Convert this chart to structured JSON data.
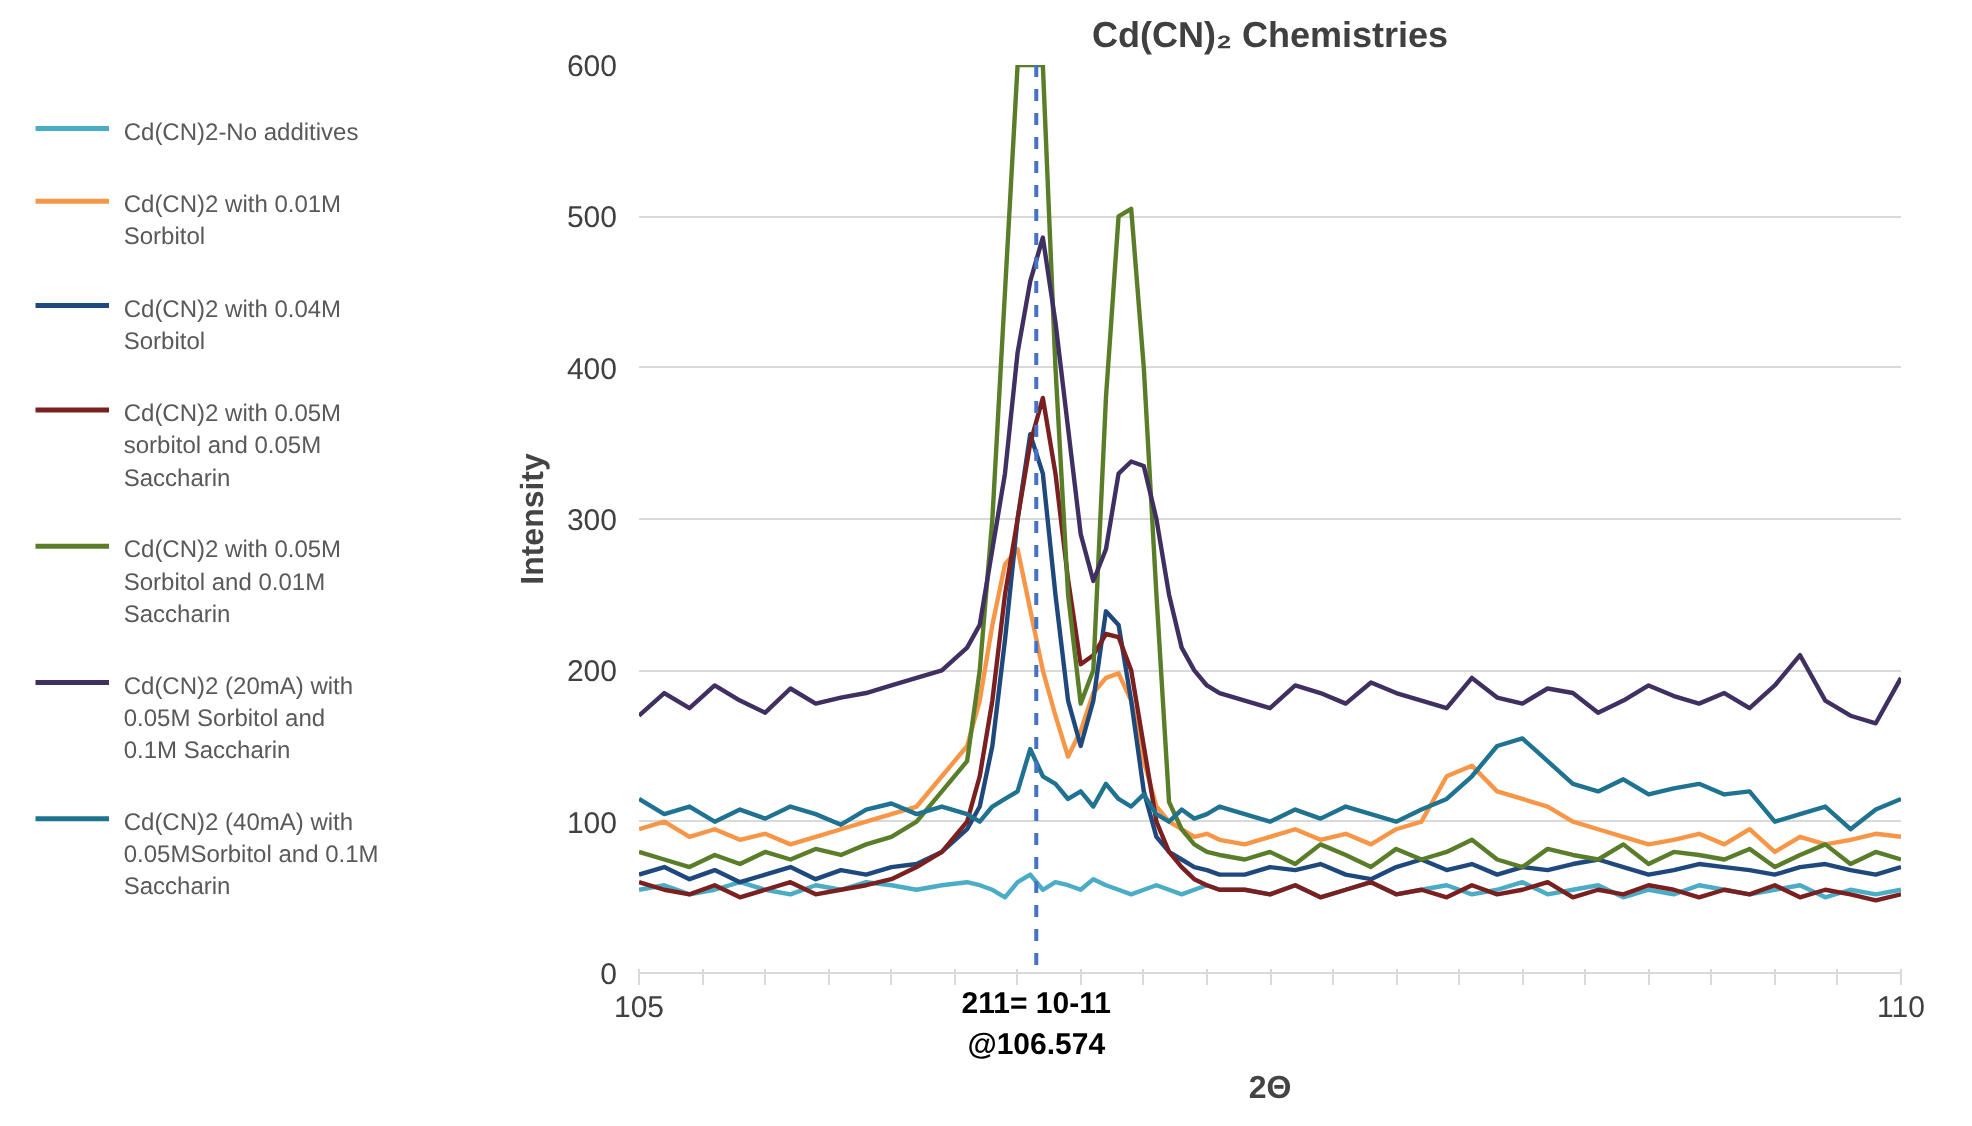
{
  "chart_data": {
    "type": "line",
    "title": "Cd(CN)₂ Chemistries",
    "xlabel": "2Θ",
    "ylabel": "Intensity",
    "x": [
      105.0,
      105.1,
      105.2,
      105.3,
      105.4,
      105.5,
      105.6,
      105.7,
      105.8,
      105.9,
      106.0,
      106.1,
      106.2,
      106.3,
      106.35,
      106.4,
      106.45,
      106.5,
      106.55,
      106.6,
      106.65,
      106.7,
      106.75,
      106.8,
      106.85,
      106.9,
      106.95,
      107.0,
      107.05,
      107.1,
      107.15,
      107.2,
      107.25,
      107.3,
      107.4,
      107.5,
      107.6,
      107.7,
      107.8,
      107.9,
      108.0,
      108.1,
      108.2,
      108.3,
      108.4,
      108.5,
      108.6,
      108.7,
      108.8,
      108.9,
      109.0,
      109.1,
      109.2,
      109.3,
      109.4,
      109.5,
      109.6,
      109.7,
      109.8,
      109.9,
      110.0
    ],
    "series": [
      {
        "name": "Cd(CN)2-No additives",
        "color": "#4bacc6",
        "values": [
          55,
          58,
          52,
          55,
          60,
          55,
          52,
          58,
          55,
          60,
          58,
          55,
          58,
          60,
          58,
          55,
          50,
          60,
          65,
          55,
          60,
          58,
          55,
          62,
          58,
          55,
          52,
          55,
          58,
          55,
          52,
          55,
          58,
          55,
          55,
          52,
          58,
          50,
          55,
          60,
          52,
          55,
          58,
          52,
          55,
          60,
          52,
          55,
          58,
          50,
          55,
          52,
          58,
          55,
          52,
          55,
          58,
          50,
          55,
          52,
          55
        ]
      },
      {
        "name": "Cd(CN)2 with 0.01M Sorbitol",
        "color": "#f79646",
        "values": [
          95,
          100,
          90,
          95,
          88,
          92,
          85,
          90,
          95,
          100,
          105,
          110,
          130,
          150,
          180,
          230,
          270,
          280,
          240,
          200,
          170,
          143,
          160,
          185,
          195,
          198,
          180,
          140,
          110,
          100,
          95,
          90,
          92,
          88,
          85,
          90,
          95,
          88,
          92,
          85,
          95,
          100,
          130,
          137,
          120,
          115,
          110,
          100,
          95,
          90,
          85,
          88,
          92,
          85,
          95,
          80,
          90,
          85,
          88,
          92,
          90
        ]
      },
      {
        "name": "Cd(CN)2 with 0.04M Sorbitol",
        "color": "#1f497d",
        "values": [
          65,
          70,
          62,
          68,
          60,
          65,
          70,
          62,
          68,
          65,
          70,
          72,
          80,
          95,
          110,
          150,
          220,
          300,
          356,
          330,
          250,
          180,
          150,
          180,
          239,
          230,
          180,
          120,
          90,
          80,
          75,
          70,
          68,
          65,
          65,
          70,
          68,
          72,
          65,
          62,
          70,
          75,
          68,
          72,
          65,
          70,
          68,
          72,
          75,
          70,
          65,
          68,
          72,
          70,
          68,
          65,
          70,
          72,
          68,
          65,
          70
        ]
      },
      {
        "name": "Cd(CN)2 with 0.05M sorbitol and 0.05M Saccharin",
        "color": "#7b2020",
        "values": [
          60,
          55,
          52,
          58,
          50,
          55,
          60,
          52,
          55,
          58,
          62,
          70,
          80,
          100,
          130,
          180,
          250,
          300,
          350,
          380,
          330,
          260,
          204,
          210,
          224,
          222,
          200,
          150,
          100,
          80,
          70,
          62,
          58,
          55,
          55,
          52,
          58,
          50,
          55,
          60,
          52,
          55,
          50,
          58,
          52,
          55,
          60,
          50,
          55,
          52,
          58,
          55,
          50,
          55,
          52,
          58,
          50,
          55,
          52,
          48,
          52
        ]
      },
      {
        "name": "Cd(CN)2 with 0.05M Sorbitol and 0.01M Saccharin",
        "color": "#5a7d2a",
        "values": [
          80,
          75,
          70,
          78,
          72,
          80,
          75,
          82,
          78,
          85,
          90,
          100,
          120,
          140,
          200,
          300,
          450,
          600,
          600,
          600,
          400,
          250,
          178,
          200,
          380,
          500,
          505,
          400,
          250,
          113,
          95,
          85,
          80,
          78,
          75,
          80,
          72,
          85,
          78,
          70,
          82,
          75,
          80,
          88,
          75,
          70,
          82,
          78,
          75,
          85,
          72,
          80,
          78,
          75,
          82,
          70,
          78,
          85,
          72,
          80,
          75
        ]
      },
      {
        "name": "Cd(CN)2 (20mA) with 0.05M Sorbitol and 0.1M Saccharin",
        "color": "#403062",
        "values": [
          170,
          185,
          175,
          190,
          180,
          172,
          188,
          178,
          182,
          185,
          190,
          195,
          200,
          215,
          230,
          280,
          330,
          410,
          457,
          486,
          430,
          360,
          290,
          259,
          280,
          330,
          338,
          335,
          300,
          250,
          215,
          200,
          190,
          185,
          180,
          175,
          190,
          185,
          178,
          192,
          185,
          180,
          175,
          195,
          182,
          178,
          188,
          185,
          172,
          180,
          190,
          183,
          178,
          185,
          175,
          190,
          210,
          180,
          170,
          165,
          195
        ]
      },
      {
        "name": "Cd(CN)2 (40mA) with 0.05MSorbitol and 0.1M Saccharin",
        "color": "#1f7391",
        "values": [
          115,
          105,
          110,
          100,
          108,
          102,
          110,
          105,
          98,
          108,
          112,
          105,
          110,
          105,
          100,
          110,
          115,
          120,
          148,
          130,
          125,
          115,
          120,
          110,
          125,
          115,
          110,
          118,
          105,
          100,
          108,
          102,
          105,
          110,
          105,
          100,
          108,
          102,
          110,
          105,
          100,
          108,
          115,
          130,
          150,
          155,
          140,
          125,
          120,
          128,
          118,
          122,
          125,
          118,
          120,
          100,
          105,
          110,
          95,
          108,
          115
        ]
      }
    ],
    "xlim": [
      105,
      110
    ],
    "ylim": [
      0,
      600
    ],
    "xticks": [
      105,
      {
        "value": 105.25,
        "label": null
      },
      {
        "value": 105.5,
        "label": null
      },
      {
        "value": 105.75,
        "label": null
      },
      {
        "value": 106,
        "label": null
      },
      {
        "value": 106.25,
        "label": null
      },
      {
        "value": 106.5,
        "label": null
      },
      {
        "value": 106.75,
        "label": null
      },
      {
        "value": 107,
        "label": null
      },
      {
        "value": 107.25,
        "label": null
      },
      {
        "value": 107.5,
        "label": null
      },
      {
        "value": 107.75,
        "label": null
      },
      {
        "value": 108,
        "label": null
      },
      {
        "value": 108.25,
        "label": null
      },
      {
        "value": 108.5,
        "label": null
      },
      {
        "value": 108.75,
        "label": null
      },
      {
        "value": 109,
        "label": null
      },
      {
        "value": 109.25,
        "label": null
      },
      {
        "value": 109.5,
        "label": null
      },
      {
        "value": 109.75,
        "label": null
      },
      110
    ],
    "yticks": [
      0,
      100,
      200,
      300,
      400,
      500,
      600
    ],
    "ref_lines": [
      {
        "axis": "x",
        "value": 106.574,
        "label": "211= 10-11\n@106.574",
        "color": "#4472c4",
        "line_style": "dashed"
      }
    ],
    "grid": "y",
    "legend": "left",
    "line_style": "solid",
    "marker": "none"
  }
}
